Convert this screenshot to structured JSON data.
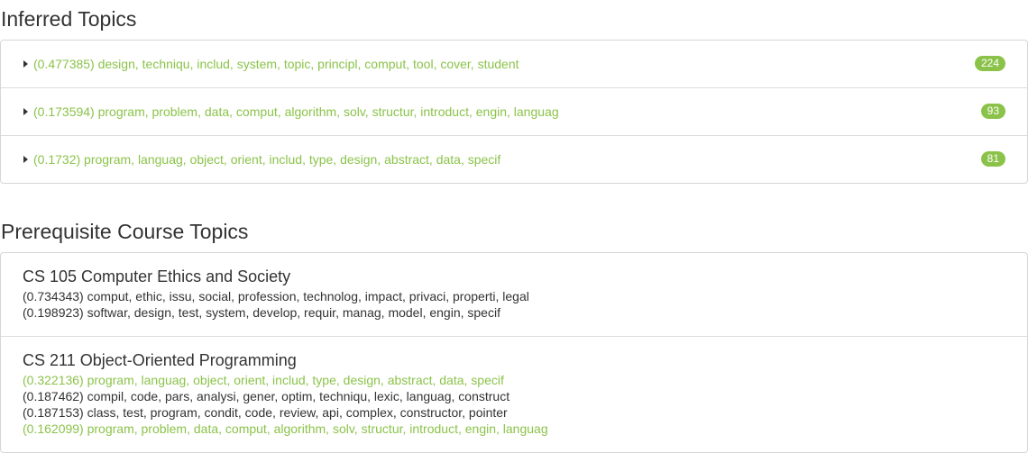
{
  "inferred": {
    "title": "Inferred Topics",
    "topics": [
      {
        "text": "(0.477385) design, techniqu, includ, system, topic, principl, comput, tool, cover, student",
        "count": "224"
      },
      {
        "text": "(0.173594) program, problem, data, comput, algorithm, solv, structur, introduct, engin, languag",
        "count": "93"
      },
      {
        "text": "(0.1732) program, languag, object, orient, includ, type, design, abstract, data, specif",
        "count": "81"
      }
    ]
  },
  "prereq": {
    "title": "Prerequisite Course Topics",
    "courses": [
      {
        "name": "CS 105 Computer Ethics and Society",
        "lines": [
          {
            "text": "(0.734343) comput, ethic, issu, social, profession, technolog, impact, privaci, properti, legal",
            "highlight": false
          },
          {
            "text": "(0.198923) softwar, design, test, system, develop, requir, manag, model, engin, specif",
            "highlight": false
          }
        ]
      },
      {
        "name": "CS 211 Object-Oriented Programming",
        "lines": [
          {
            "text": "(0.322136) program, languag, object, orient, includ, type, design, abstract, data, specif",
            "highlight": true
          },
          {
            "text": "(0.187462) compil, code, pars, analysi, gener, optim, techniqu, lexic, languag, construct",
            "highlight": false
          },
          {
            "text": "(0.187153) class, test, program, condit, code, review, api, complex, constructor, pointer",
            "highlight": false
          },
          {
            "text": "(0.162099) program, problem, data, comput, algorithm, solv, structur, introduct, engin, languag",
            "highlight": true
          }
        ]
      }
    ]
  },
  "colors": {
    "accent": "#8bc34a",
    "text": "#333333",
    "border": "#d6d6d6"
  }
}
